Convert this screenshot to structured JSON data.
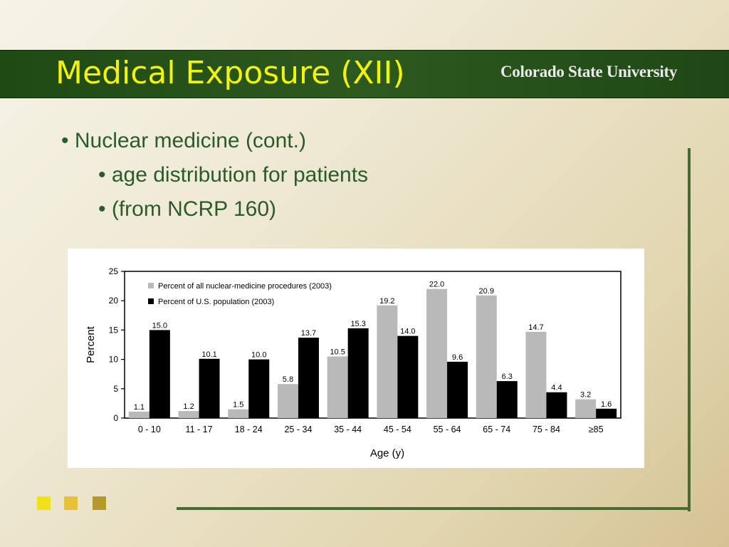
{
  "slide": {
    "title": "Medical Exposure (XII)",
    "logo": "Colorado State University"
  },
  "bullets": [
    "• Nuclear medicine (cont.)",
    "• age distribution for patients",
    "• (from NCRP 160)"
  ],
  "colors": {
    "title_bar": "#2c5a1e",
    "title_text": "#f5f20a",
    "bullet_text": "#2a5b2a",
    "series_gray": "#b9b9b9",
    "series_black": "#000000"
  },
  "chart_data": {
    "type": "bar",
    "xlabel": "Age (y)",
    "ylabel": "Percent",
    "ylim": [
      0,
      25
    ],
    "yticks": [
      0,
      5,
      10,
      15,
      20,
      25
    ],
    "categories": [
      "0 - 10",
      "11 - 17",
      "18 - 24",
      "25 - 34",
      "35 - 44",
      "45 - 54",
      "55 - 64",
      "65 - 74",
      "75 - 84",
      "≥85"
    ],
    "series": [
      {
        "name": "Percent of all nuclear-medicine procedures (2003)",
        "color": "#b9b9b9",
        "values": [
          1.1,
          1.2,
          1.5,
          5.8,
          10.5,
          19.2,
          22.0,
          20.9,
          14.7,
          3.2
        ],
        "labels": [
          "1.1",
          "1.2",
          "1.5",
          "5.8",
          "10.5",
          "19.2",
          "22.0",
          "20.9",
          "14.7",
          "3.2"
        ]
      },
      {
        "name": "Percent of U.S. population (2003)",
        "color": "#000000",
        "values": [
          15.0,
          10.1,
          10.0,
          13.7,
          15.3,
          14.0,
          9.6,
          6.3,
          4.4,
          1.6
        ],
        "labels": [
          "15.0",
          "10.1",
          "10.0",
          "13.7",
          "15.3",
          "14.0",
          "9.6",
          "6.3",
          "4.4",
          "1.6"
        ]
      }
    ],
    "legend_position": "top-left",
    "grid": false
  }
}
